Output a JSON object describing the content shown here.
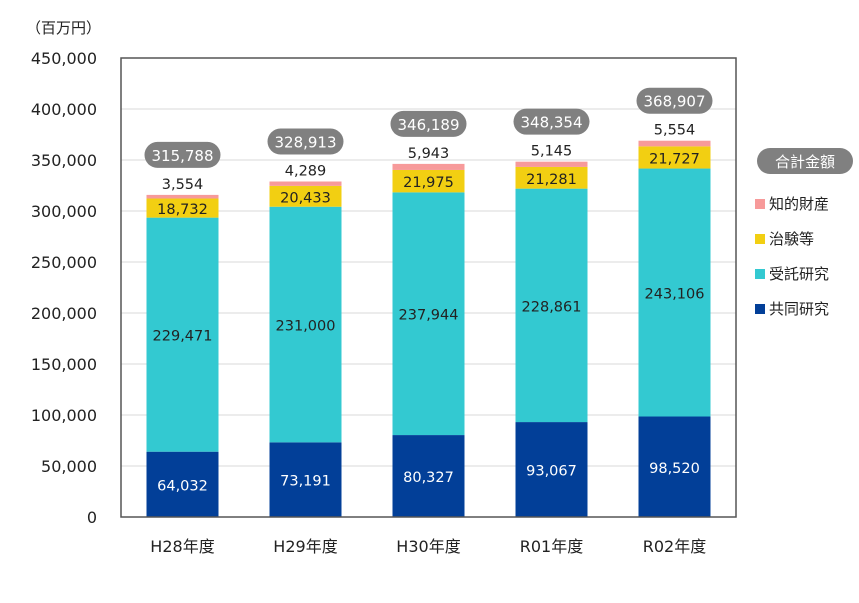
{
  "chart_data": {
    "type": "bar",
    "stacked": true,
    "unit_label": "（百万円）",
    "categories": [
      "H28年度",
      "H29年度",
      "H30年度",
      "R01年度",
      "R02年度"
    ],
    "ylim": [
      0,
      450000
    ],
    "yticks": [
      0,
      50000,
      100000,
      150000,
      200000,
      250000,
      300000,
      350000,
      400000,
      450000
    ],
    "ytick_labels": [
      "0",
      "50,000",
      "100,000",
      "150,000",
      "200,000",
      "250,000",
      "300,000",
      "350,000",
      "400,000",
      "450,000"
    ],
    "grid": true,
    "series": [
      {
        "name": "共同研究",
        "color": "#023f98",
        "label_color": "#ffffff",
        "values": [
          64032,
          73191,
          80327,
          93067,
          98520
        ],
        "labels": [
          "64,032",
          "73,191",
          "80,327",
          "93,067",
          "98,520"
        ]
      },
      {
        "name": "受託研究",
        "color": "#33c9d1",
        "label_color": "#222222",
        "values": [
          229471,
          231000,
          237944,
          228861,
          243106
        ],
        "labels": [
          "229,471",
          "231,000",
          "237,944",
          "228,861",
          "243,106"
        ]
      },
      {
        "name": "治験等",
        "color": "#f2cf12",
        "label_color": "#222222",
        "values": [
          18732,
          20433,
          21975,
          21281,
          21727
        ],
        "labels": [
          "18,732",
          "20,433",
          "21,975",
          "21,281",
          "21,727"
        ]
      },
      {
        "name": "知的財産",
        "color": "#f79a9a",
        "label_color": "#222222",
        "values": [
          3554,
          4289,
          5943,
          5145,
          5554
        ],
        "labels": [
          "3,554",
          "4,289",
          "5,943",
          "5,145",
          "5,554"
        ]
      }
    ],
    "totals": {
      "name": "合計金額",
      "values": [
        315788,
        328913,
        346189,
        348354,
        368907
      ],
      "labels": [
        "315,788",
        "328,913",
        "346,189",
        "348,354",
        "368,907"
      ],
      "color": "#808080"
    },
    "legend": {
      "placement": "right",
      "title": "合計金額",
      "items": [
        "知的財産",
        "治験等",
        "受託研究",
        "共同研究"
      ]
    }
  }
}
